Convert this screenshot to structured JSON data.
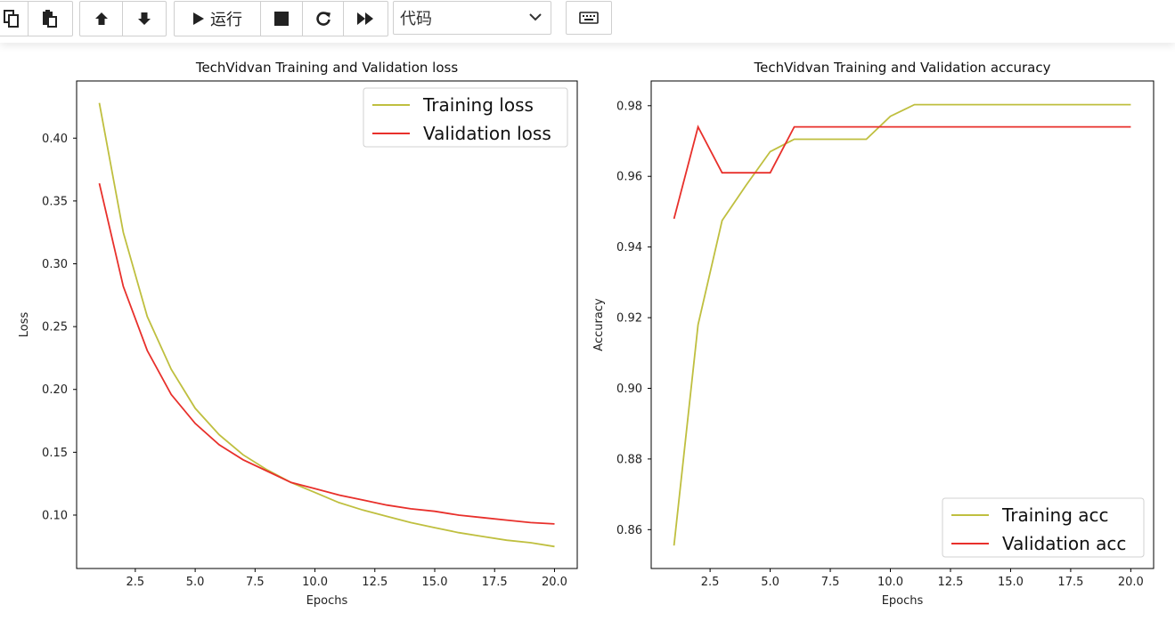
{
  "toolbar": {
    "run_label": "运行",
    "cell_type": "代码"
  },
  "chart_data": [
    {
      "type": "line",
      "title": "TechVidvan Training and Validation loss",
      "xlabel": "Epochs",
      "ylabel": "Loss",
      "xlim": [
        0.05,
        20.95
      ],
      "ylim": [
        0.0575,
        0.4455
      ],
      "xticks": [
        2.5,
        5.0,
        7.5,
        10.0,
        12.5,
        15.0,
        17.5,
        20.0
      ],
      "xtick_labels": [
        "2.5",
        "5.0",
        "7.5",
        "10.0",
        "12.5",
        "15.0",
        "17.5",
        "20.0"
      ],
      "yticks": [
        0.1,
        0.15,
        0.2,
        0.25,
        0.3,
        0.35,
        0.4
      ],
      "ytick_labels": [
        "0.10",
        "0.15",
        "0.20",
        "0.25",
        "0.30",
        "0.35",
        "0.40"
      ],
      "legend_position": "upper-right",
      "x": [
        1,
        2,
        3,
        4,
        5,
        6,
        7,
        8,
        9,
        10,
        11,
        12,
        13,
        14,
        15,
        16,
        17,
        18,
        19,
        20
      ],
      "series": [
        {
          "name": "Training loss",
          "color": "#bfbf3f",
          "values": [
            0.428,
            0.325,
            0.258,
            0.216,
            0.185,
            0.164,
            0.148,
            0.136,
            0.126,
            0.118,
            0.11,
            0.104,
            0.099,
            0.094,
            0.09,
            0.086,
            0.083,
            0.08,
            0.078,
            0.075
          ]
        },
        {
          "name": "Validation loss",
          "color": "#e8302b",
          "values": [
            0.364,
            0.282,
            0.231,
            0.196,
            0.173,
            0.156,
            0.144,
            0.135,
            0.126,
            0.121,
            0.116,
            0.112,
            0.108,
            0.105,
            0.103,
            0.1,
            0.098,
            0.096,
            0.094,
            0.093
          ]
        }
      ]
    },
    {
      "type": "line",
      "title": "TechVidvan Training and Validation accuracy",
      "xlabel": "Epochs",
      "ylabel": "Accuracy",
      "xlim": [
        0.05,
        20.95
      ],
      "ylim": [
        0.849,
        0.987
      ],
      "xticks": [
        2.5,
        5.0,
        7.5,
        10.0,
        12.5,
        15.0,
        17.5,
        20.0
      ],
      "xtick_labels": [
        "2.5",
        "5.0",
        "7.5",
        "10.0",
        "12.5",
        "15.0",
        "17.5",
        "20.0"
      ],
      "yticks": [
        0.86,
        0.88,
        0.9,
        0.92,
        0.94,
        0.96,
        0.98
      ],
      "ytick_labels": [
        "0.86",
        "0.88",
        "0.90",
        "0.92",
        "0.94",
        "0.96",
        "0.98"
      ],
      "legend_position": "lower-right",
      "x": [
        1,
        2,
        3,
        4,
        5,
        6,
        7,
        8,
        9,
        10,
        11,
        12,
        13,
        14,
        15,
        16,
        17,
        18,
        19,
        20
      ],
      "series": [
        {
          "name": "Training acc",
          "color": "#bfbf3f",
          "values": [
            0.8555,
            0.918,
            0.9475,
            0.9575,
            0.967,
            0.9705,
            0.9705,
            0.9705,
            0.9705,
            0.977,
            0.9803,
            0.9803,
            0.9803,
            0.9803,
            0.9803,
            0.9803,
            0.9803,
            0.9803,
            0.9803,
            0.9803
          ]
        },
        {
          "name": "Validation acc",
          "color": "#e8302b",
          "values": [
            0.948,
            0.974,
            0.961,
            0.961,
            0.961,
            0.974,
            0.974,
            0.974,
            0.974,
            0.974,
            0.974,
            0.974,
            0.974,
            0.974,
            0.974,
            0.974,
            0.974,
            0.974,
            0.974,
            0.974
          ]
        }
      ]
    }
  ]
}
